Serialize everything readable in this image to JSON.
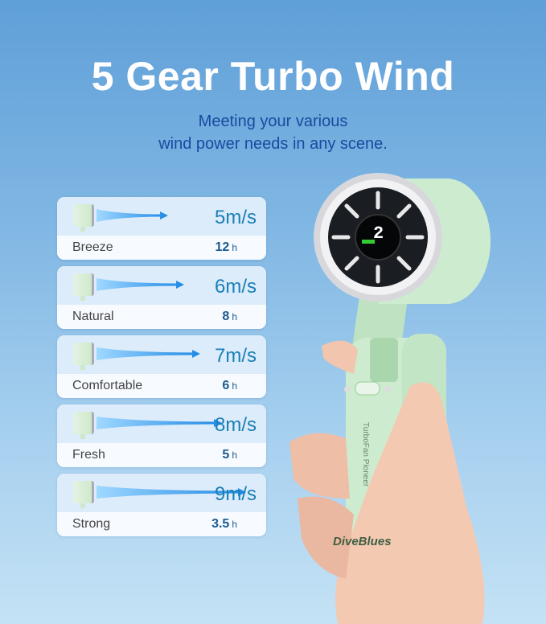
{
  "header": {
    "title": "5 Gear Turbo Wind",
    "subtitle_line1": "Meeting your various",
    "subtitle_line2": "wind power needs in any scene."
  },
  "gears": [
    {
      "speed": "5m/s",
      "mode": "Breeze",
      "hours": "12",
      "unit": "h"
    },
    {
      "speed": "6m/s",
      "mode": "Natural",
      "hours": "8",
      "unit": "h"
    },
    {
      "speed": "7m/s",
      "mode": "Comfortable",
      "hours": "6",
      "unit": "h"
    },
    {
      "speed": "8m/s",
      "mode": "Fresh",
      "hours": "5",
      "unit": "h"
    },
    {
      "speed": "9m/s",
      "mode": "Strong",
      "hours": "3.5",
      "unit": "h"
    }
  ],
  "product": {
    "brand": "DiveBlues",
    "model_text": "TurboFan Pioneer",
    "display_digit": "2",
    "body_color": "#cdeccf",
    "accent": "#1a7fb8"
  }
}
